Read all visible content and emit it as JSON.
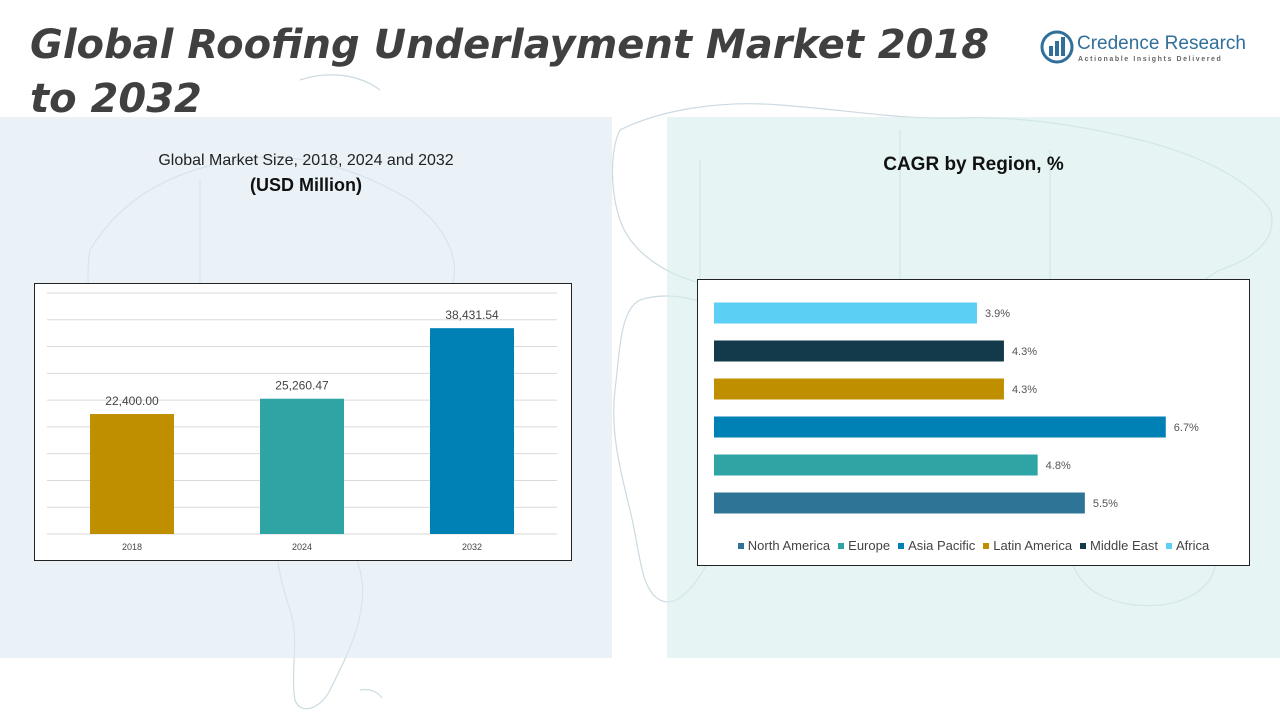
{
  "page": {
    "title": "Global Roofing Underlayment Market 2018 to 2032"
  },
  "logo": {
    "name": "Credence Research",
    "tagline": "Actionable Insights Delivered",
    "color": "#2f6f9a"
  },
  "left_panel": {
    "heading_line1": "Global Market Size, 2018, 2024 and 2032",
    "heading_line2": "(USD Million)"
  },
  "right_panel": {
    "heading": "CAGR by Region, %"
  },
  "chart_data": [
    {
      "type": "bar",
      "categories": [
        "2018",
        "2024",
        "2032"
      ],
      "values": [
        22400.0,
        25260.47,
        38431.54
      ],
      "value_labels": [
        "22,400.00",
        "25,260.47",
        "38,431.54"
      ],
      "colors": [
        "#bf8f00",
        "#2ea4a4",
        "#0081b5"
      ],
      "title": "Global Market Size, 2018, 2024 and 2032",
      "ylabel": "(USD Million)",
      "ylim": [
        0,
        45000
      ],
      "grid": true,
      "show_y_axis": false
    },
    {
      "type": "bar",
      "orientation": "horizontal",
      "categories": [
        "Africa",
        "Middle East",
        "Latin America",
        "Asia Pacific",
        "Europe",
        "North America"
      ],
      "values": [
        3.9,
        4.3,
        4.3,
        6.7,
        4.8,
        5.5
      ],
      "value_labels": [
        "3.9%",
        "4.3%",
        "4.3%",
        "6.7%",
        "4.8%",
        "5.5%"
      ],
      "colors": [
        "#5ccff5",
        "#133a4a",
        "#bf8f00",
        "#0081b5",
        "#2ea4a4",
        "#2e7496"
      ],
      "title": "CAGR by Region, %",
      "xlim": [
        0,
        7
      ],
      "grid": false,
      "legend": {
        "position": "bottom",
        "entries": [
          "North America",
          "Europe",
          "Asia Pacific",
          "Latin America",
          "Middle East",
          "Africa"
        ],
        "colors": [
          "#2e7496",
          "#2ea4a4",
          "#0081b5",
          "#bf8f00",
          "#133a4a",
          "#5ccff5"
        ]
      }
    }
  ]
}
